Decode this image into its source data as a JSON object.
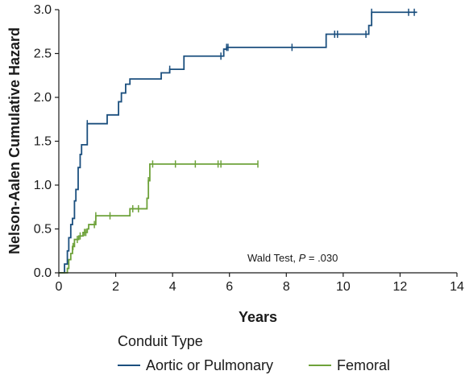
{
  "chart_data": {
    "type": "line",
    "subtype": "step",
    "xlabel": "Years",
    "ylabel": "Nelson-Aalen Cumulative Hazard",
    "xlim": [
      0,
      14
    ],
    "ylim": [
      0,
      3.0
    ],
    "xticks": [
      "0",
      "2",
      "4",
      "6",
      "8",
      "10",
      "12",
      "14"
    ],
    "yticks": [
      "0.0",
      "0.5",
      "1.0",
      "1.5",
      "2.0",
      "2.5",
      "3.0"
    ],
    "grid": false,
    "legend": {
      "title": "Conduit Type",
      "placement": "bottom",
      "entries": [
        "Aortic or Pulmonary",
        "Femoral"
      ]
    },
    "annotation": {
      "prefix": "Wald Test, ",
      "p_label": "P",
      "suffix": " = .030"
    },
    "series": [
      {
        "name": "Aortic or Pulmonary",
        "color": "#1b4f7e",
        "steps": [
          [
            0,
            0
          ],
          [
            0.2,
            0.1
          ],
          [
            0.3,
            0.25
          ],
          [
            0.35,
            0.4
          ],
          [
            0.42,
            0.55
          ],
          [
            0.48,
            0.62
          ],
          [
            0.55,
            0.82
          ],
          [
            0.6,
            0.95
          ],
          [
            0.68,
            1.2
          ],
          [
            0.75,
            1.35
          ],
          [
            0.8,
            1.46
          ],
          [
            1.0,
            1.7
          ],
          [
            1.7,
            1.8
          ],
          [
            2.1,
            1.95
          ],
          [
            2.2,
            2.05
          ],
          [
            2.35,
            2.15
          ],
          [
            2.5,
            2.21
          ],
          [
            3.6,
            2.28
          ],
          [
            3.9,
            2.32
          ],
          [
            4.4,
            2.47
          ],
          [
            5.8,
            2.55
          ],
          [
            5.9,
            2.57
          ],
          [
            9.4,
            2.72
          ],
          [
            10.9,
            2.82
          ],
          [
            11.0,
            2.97
          ],
          [
            12.6,
            2.97
          ]
        ],
        "censored": [
          1.0,
          3.9,
          5.7,
          5.9,
          5.95,
          8.2,
          9.7,
          9.8,
          10.8,
          11.0,
          12.3,
          12.5
        ]
      },
      {
        "name": "Femoral",
        "color": "#6ea23a",
        "steps": [
          [
            0,
            0
          ],
          [
            0.3,
            0.05
          ],
          [
            0.35,
            0.15
          ],
          [
            0.42,
            0.22
          ],
          [
            0.48,
            0.3
          ],
          [
            0.55,
            0.38
          ],
          [
            0.7,
            0.42
          ],
          [
            0.85,
            0.46
          ],
          [
            1.0,
            0.5
          ],
          [
            1.05,
            0.55
          ],
          [
            1.3,
            0.65
          ],
          [
            2.5,
            0.73
          ],
          [
            3.1,
            0.85
          ],
          [
            3.15,
            1.05
          ],
          [
            3.2,
            1.24
          ],
          [
            7.0,
            1.24
          ]
        ],
        "censored": [
          0.5,
          0.65,
          0.75,
          0.9,
          0.95,
          1.25,
          1.3,
          1.8,
          2.6,
          2.8,
          3.15,
          3.3,
          4.1,
          4.8,
          5.6,
          5.7,
          7.0
        ]
      }
    ]
  }
}
